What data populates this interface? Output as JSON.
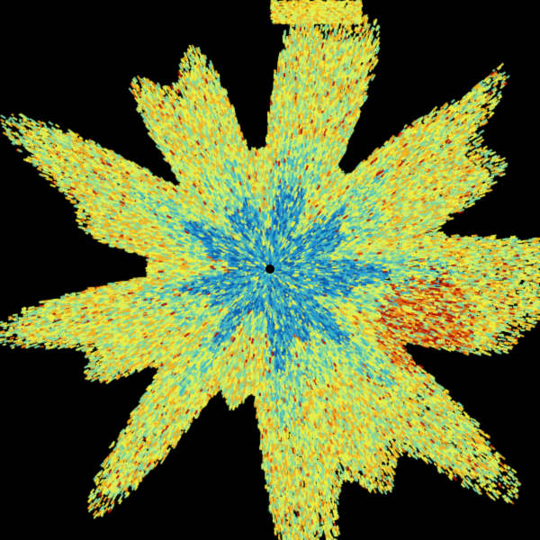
{
  "image": {
    "kind": "radar-ppi-reflectivity",
    "background": "#000000",
    "palette": [
      "#0a5fb0",
      "#1e8fd0",
      "#3fb8c8",
      "#7fd8a0",
      "#c8ee70",
      "#f0f040",
      "#f0b020",
      "#e06010",
      "#b01008"
    ],
    "center_marker": "radar-site"
  }
}
